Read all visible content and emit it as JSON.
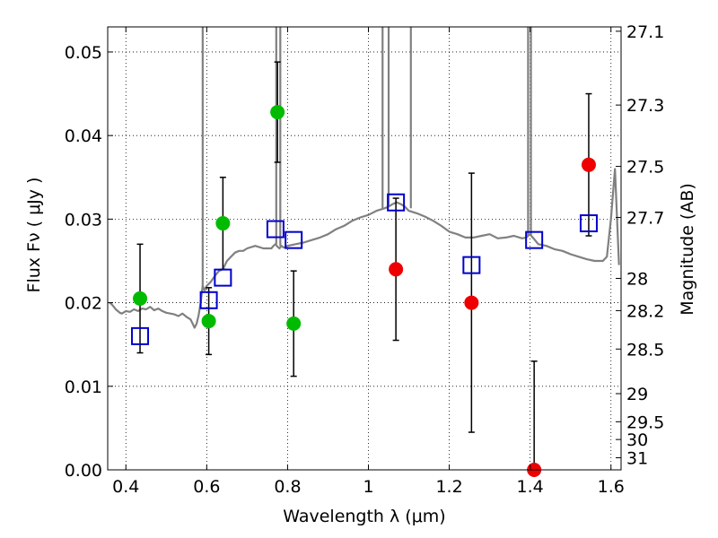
{
  "chart_data": {
    "type": "scatter",
    "title": "",
    "xlabel": "Wavelength  λ (μm)",
    "ylabel": "Flux  Fν  ( μJy )",
    "ylabel_right": "Magnitude (AB)",
    "xlim": [
      0.355,
      1.625
    ],
    "ylim": [
      0,
      0.053
    ],
    "grid": true,
    "x_ticks": [
      {
        "v": 0.4,
        "label": "0.4"
      },
      {
        "v": 0.6,
        "label": "0.6"
      },
      {
        "v": 0.8,
        "label": "0.8"
      },
      {
        "v": 1.0,
        "label": "1"
      },
      {
        "v": 1.2,
        "label": "1.2"
      },
      {
        "v": 1.4,
        "label": "1.4"
      },
      {
        "v": 1.6,
        "label": "1.6"
      }
    ],
    "y_ticks": [
      {
        "v": 0.0,
        "label": "0.00"
      },
      {
        "v": 0.01,
        "label": "0.01"
      },
      {
        "v": 0.02,
        "label": "0.02"
      },
      {
        "v": 0.03,
        "label": "0.03"
      },
      {
        "v": 0.04,
        "label": "0.04"
      },
      {
        "v": 0.05,
        "label": "0.05"
      }
    ],
    "mag_ticks": [
      "27.1",
      "27.3",
      "27.5",
      "27.7",
      "28",
      "28.2",
      "28.5",
      "29",
      "29.5",
      "30",
      "31"
    ],
    "series": [
      {
        "name": "",
        "kind": "line",
        "color": "#808080",
        "x": [
          0.36,
          0.365,
          0.37,
          0.375,
          0.38,
          0.385,
          0.39,
          0.4,
          0.41,
          0.42,
          0.43,
          0.44,
          0.45,
          0.46,
          0.47,
          0.48,
          0.49,
          0.5,
          0.51,
          0.52,
          0.53,
          0.54,
          0.55,
          0.56,
          0.565,
          0.57,
          0.575,
          0.58,
          0.585,
          0.59,
          0.595,
          0.6,
          0.61,
          0.62,
          0.63,
          0.64,
          0.645,
          0.65,
          0.66,
          0.67,
          0.68,
          0.69,
          0.7,
          0.72,
          0.74,
          0.76,
          0.765,
          0.77,
          0.775,
          0.78,
          0.785,
          0.79,
          0.8,
          0.82,
          0.84,
          0.86,
          0.88,
          0.9,
          0.92,
          0.94,
          0.96,
          0.98,
          1.0,
          1.02,
          1.04,
          1.05,
          1.06,
          1.07,
          1.08,
          1.09,
          1.1,
          1.12,
          1.14,
          1.16,
          1.18,
          1.2,
          1.22,
          1.24,
          1.26,
          1.28,
          1.3,
          1.32,
          1.34,
          1.36,
          1.38,
          1.39,
          1.395,
          1.4,
          1.405,
          1.41,
          1.42,
          1.44,
          1.46,
          1.48,
          1.5,
          1.52,
          1.54,
          1.56,
          1.58,
          1.59,
          1.6,
          1.61,
          1.62
        ],
        "y": [
          0.02,
          0.0198,
          0.0195,
          0.0192,
          0.019,
          0.0188,
          0.0187,
          0.019,
          0.0189,
          0.0192,
          0.019,
          0.0193,
          0.0192,
          0.0195,
          0.0191,
          0.0193,
          0.019,
          0.0188,
          0.0187,
          0.0186,
          0.0184,
          0.0187,
          0.0183,
          0.018,
          0.0175,
          0.017,
          0.0175,
          0.0185,
          0.02,
          0.022,
          0.0215,
          0.022,
          0.0225,
          0.0232,
          0.0238,
          0.024,
          0.0245,
          0.025,
          0.0255,
          0.026,
          0.0262,
          0.0262,
          0.0265,
          0.0268,
          0.0265,
          0.0265,
          0.0268,
          0.027,
          0.0267,
          0.0265,
          0.0268,
          0.0266,
          0.0268,
          0.027,
          0.0272,
          0.0275,
          0.0278,
          0.0282,
          0.0288,
          0.0292,
          0.0298,
          0.0302,
          0.0305,
          0.031,
          0.0313,
          0.0315,
          0.0318,
          0.032,
          0.0318,
          0.0315,
          0.031,
          0.0307,
          0.0303,
          0.0298,
          0.0292,
          0.0285,
          0.0282,
          0.0278,
          0.0278,
          0.028,
          0.0282,
          0.0277,
          0.0278,
          0.028,
          0.0277,
          0.0278,
          0.028,
          0.0282,
          0.0279,
          0.0276,
          0.027,
          0.0268,
          0.0264,
          0.0262,
          0.0258,
          0.0255,
          0.0252,
          0.025,
          0.025,
          0.0255,
          0.03,
          0.036,
          0.0245
        ]
      },
      {
        "name": "",
        "kind": "open-square",
        "color": "#0000cc",
        "x": [
          0.435,
          0.605,
          0.64,
          0.77,
          0.815,
          1.068,
          1.255,
          1.41,
          1.545
        ],
        "y": [
          0.016,
          0.0203,
          0.023,
          0.0288,
          0.0275,
          0.032,
          0.0245,
          0.0275,
          0.0295
        ]
      },
      {
        "name": "",
        "kind": "filled-circle",
        "color": "#00bb00",
        "x": [
          0.435,
          0.605,
          0.64,
          0.775,
          0.815
        ],
        "y": [
          0.0205,
          0.0178,
          0.0295,
          0.0428,
          0.0175
        ],
        "err": [
          0.0065,
          0.004,
          0.0055,
          0.006,
          0.0063
        ]
      },
      {
        "name": "",
        "kind": "filled-circle",
        "color": "#ee0000",
        "x": [
          1.068,
          1.255,
          1.41,
          1.545
        ],
        "y": [
          0.024,
          0.02,
          0.0,
          0.0365
        ],
        "err": [
          0.0085,
          0.0155,
          0.013,
          0.0085
        ]
      }
    ]
  }
}
